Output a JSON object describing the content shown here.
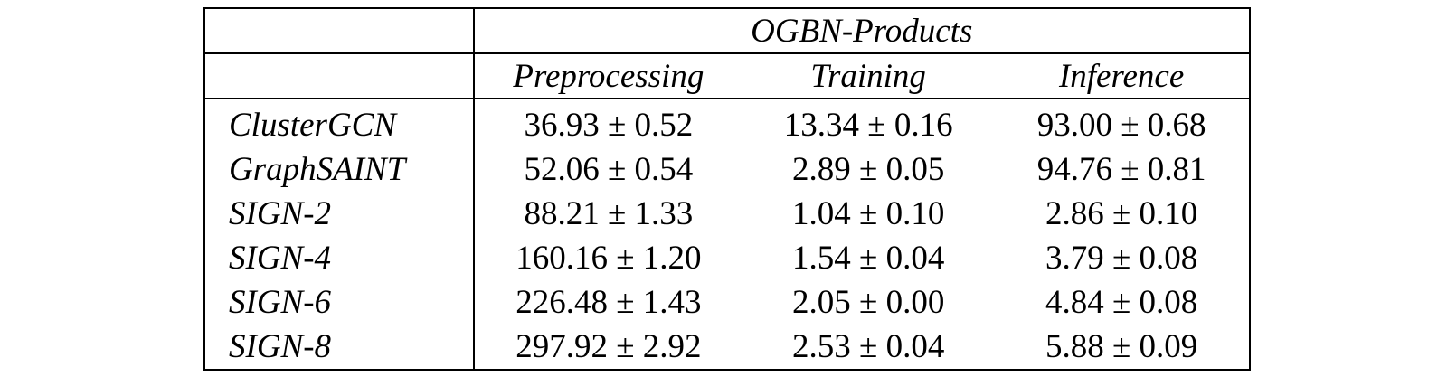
{
  "table": {
    "dataset": "OGBN-Products",
    "columns": [
      "Preprocessing",
      "Training",
      "Inference"
    ],
    "rows": [
      {
        "method": "ClusterGCN",
        "preprocessing": "36.93 ± 0.52",
        "training": "13.34 ± 0.16",
        "inference": "93.00 ± 0.68"
      },
      {
        "method": "GraphSAINT",
        "preprocessing": "52.06 ± 0.54",
        "training": "2.89 ± 0.05",
        "inference": "94.76 ± 0.81"
      },
      {
        "method": "SIGN-2",
        "preprocessing": "88.21 ± 1.33",
        "training": "1.04 ± 0.10",
        "inference": "2.86 ± 0.10"
      },
      {
        "method": "SIGN-4",
        "preprocessing": "160.16 ± 1.20",
        "training": "1.54 ± 0.04",
        "inference": "3.79 ± 0.08"
      },
      {
        "method": "SIGN-6",
        "preprocessing": "226.48 ± 1.43",
        "training": "2.05 ± 0.00",
        "inference": "4.84 ± 0.08"
      },
      {
        "method": "SIGN-8",
        "preprocessing": "297.92 ± 2.92",
        "training": "2.53 ± 0.04",
        "inference": "5.88 ± 0.09"
      }
    ]
  }
}
